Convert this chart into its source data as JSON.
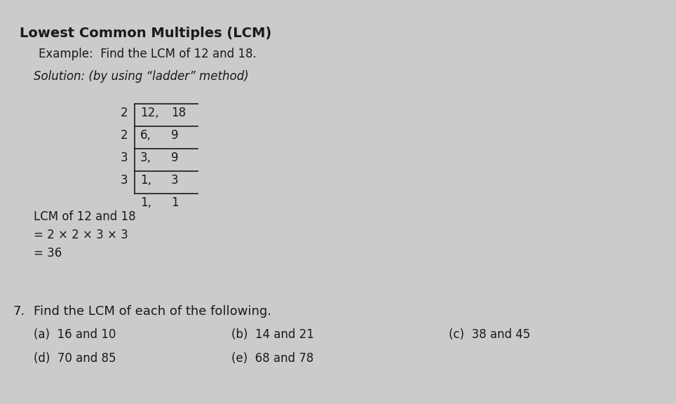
{
  "bg_color": "#cbcbcb",
  "title_bold": "Lowest Common Multiples (LCM)",
  "title_example": "Example:  Find the LCM of 12 and 18.",
  "solution_line": "Solution: (by using “ladder” method)",
  "ladder": {
    "divisors": [
      "2",
      "2",
      "3",
      "3"
    ],
    "rows": [
      [
        "12,",
        "18"
      ],
      [
        "6,",
        "9"
      ],
      [
        "3,",
        "9"
      ],
      [
        "1,",
        "3"
      ]
    ],
    "last_row": [
      "1,",
      "1"
    ]
  },
  "lcm_lines": [
    "LCM of 12 and 18",
    "= 2 × 2 × 3 × 3",
    "= 36"
  ],
  "exercise_number": "7.",
  "exercise_text": "Find the LCM of each of the following.",
  "col1": [
    "(a)  16 and 10",
    "(d)  70 and 85"
  ],
  "col2": [
    "(b)  14 and 21",
    "(e)  68 and 78"
  ],
  "col3": [
    "(c)  38 and 45"
  ],
  "text_color": "#1a1a1a",
  "fs_title": 14,
  "fs_body": 12,
  "fs_exercise": 13
}
